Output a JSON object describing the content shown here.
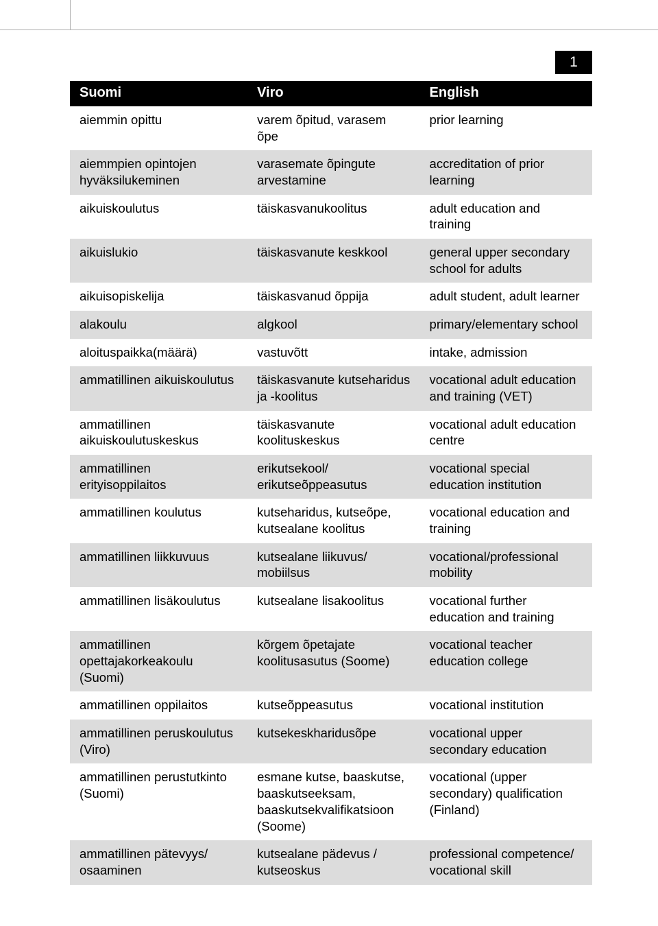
{
  "page_number": "1",
  "background_color": "#ffffff",
  "header_bg": "#000000",
  "header_fg": "#ffffff",
  "row_bg_odd": "#ffffff",
  "row_bg_even": "#dcdcdc",
  "text_color": "#000000",
  "font_size_body": 18.5,
  "font_size_header": 20,
  "columns": [
    {
      "key": "suomi",
      "label": "Suomi"
    },
    {
      "key": "viro",
      "label": "Viro"
    },
    {
      "key": "english",
      "label": "English"
    }
  ],
  "rows": [
    {
      "suomi": "aiemmin opittu",
      "viro": "varem õpitud, varasem õpe",
      "english": "prior learning"
    },
    {
      "suomi": "aiemmpien opintojen hyväksilukeminen",
      "viro": "varasemate õpingute arvestamine",
      "english": "accreditation of prior learning"
    },
    {
      "suomi": "aikuiskoulutus",
      "viro": "täiskasvanukoolitus",
      "english": "adult education and training"
    },
    {
      "suomi": "aikuislukio",
      "viro": "täiskasvanute keskkool",
      "english": "general upper secondary school for adults"
    },
    {
      "suomi": "aikuisopiskelija",
      "viro": "täiskasvanud õppija",
      "english": "adult student, adult learner"
    },
    {
      "suomi": "alakoulu",
      "viro": "algkool",
      "english": "primary/elementary school"
    },
    {
      "suomi": "aloituspaikka(määrä)",
      "viro": "vastuvõtt",
      "english": "intake, admission"
    },
    {
      "suomi": "ammatillinen aikuiskoulutus",
      "viro": "täiskasvanute kutseharidus ja -koolitus",
      "english": "vocational adult education and training (VET)"
    },
    {
      "suomi": "ammatillinen aikuiskoulutuskeskus",
      "viro": "täiskasvanute koolituskeskus",
      "english": "vocational adult education centre"
    },
    {
      "suomi": "ammatillinen erityisoppilaitos",
      "viro": "erikutsekool/ erikutseõppeasutus",
      "english": "vocational special education institution"
    },
    {
      "suomi": "ammatillinen koulutus",
      "viro": "kutseharidus, kutseõpe, kutsealane koolitus",
      "english": "vocational education and training"
    },
    {
      "suomi": "ammatillinen liikkuvuus",
      "viro": "kutsealane liikuvus/ mobiilsus",
      "english": "vocational/professional mobility"
    },
    {
      "suomi": "ammatillinen lisäkoulutus",
      "viro": "kutsealane lisakoolitus",
      "english": "vocational further education and training"
    },
    {
      "suomi": "ammatillinen opettajakorkeakoulu (Suomi)",
      "viro": "kõrgem õpetajate koolitusasutus (Soome)",
      "english": "vocational teacher education college"
    },
    {
      "suomi": "ammatillinen oppilaitos",
      "viro": "kutseõppeasutus",
      "english": "vocational institution"
    },
    {
      "suomi": "ammatillinen peruskoulutus (Viro)",
      "viro": "kutsekeskharidusõpe",
      "english": "vocational upper secondary education"
    },
    {
      "suomi": "ammatillinen perustutkinto (Suomi)",
      "viro": "esmane kutse, baaskutse, baaskutseeksam, baaskutsekvalifikatsioon (Soome)",
      "english": "vocational (upper secondary) qualification (Finland)"
    },
    {
      "suomi": "ammatillinen pätevyys/ osaaminen",
      "viro": "kutsealane pädevus / kutseoskus",
      "english": "professional competence/ vocational skill"
    }
  ]
}
